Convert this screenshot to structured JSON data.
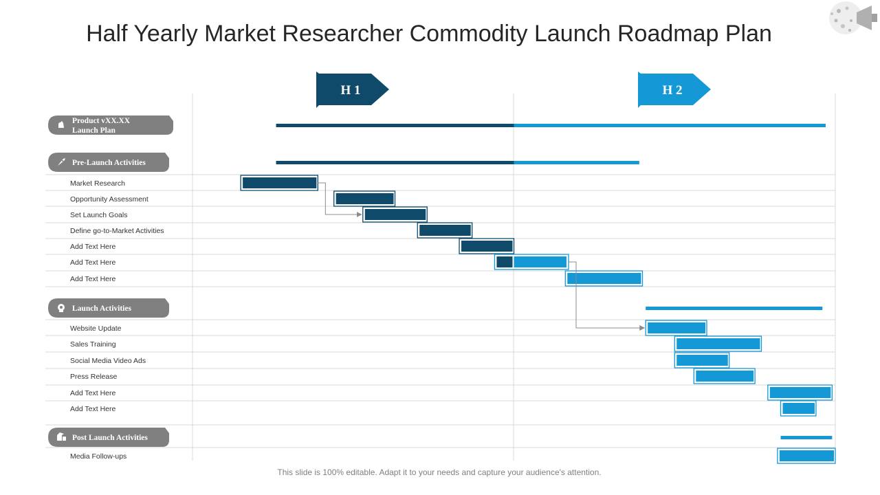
{
  "title": "Half Yearly Market Researcher Commodity Launch Roadmap Plan",
  "footer": "This slide is 100% editable. Adapt it to your needs and capture your audience's attention.",
  "colors": {
    "h1": "#0f4a6a",
    "h2": "#1498d6",
    "section_pill": "#808080",
    "grid": "#d9d9d9"
  },
  "chart_data": {
    "type": "gantt",
    "phases": [
      {
        "label": "H 1",
        "color": "#0f4a6a"
      },
      {
        "label": "H 2",
        "color": "#1498d6"
      }
    ],
    "sections": [
      {
        "label": "Product vXX.XX Launch Plan",
        "icon": "hand-icon",
        "summary": [
          0.26,
          1.97
        ]
      },
      {
        "label": "Pre-Launch Activities",
        "icon": "rocket-icon",
        "summary": [
          0.26,
          1.39
        ]
      },
      {
        "label": "Launch Activities",
        "icon": "head-gear-icon",
        "summary": [
          1.41,
          1.96
        ]
      },
      {
        "label": "Post Launch Activities",
        "icon": "boxes-icon",
        "summary": [
          1.83,
          1.99
        ]
      }
    ],
    "tasks": [
      {
        "label": "Market Research",
        "section": 1,
        "start": 0.15,
        "end": 0.39
      },
      {
        "label": "Opportunity Assessment",
        "section": 1,
        "start": 0.44,
        "end": 0.63
      },
      {
        "label": "Set Launch Goals",
        "section": 1,
        "start": 0.53,
        "end": 0.73
      },
      {
        "label": "Define go-to-Market Activities",
        "section": 1,
        "start": 0.7,
        "end": 0.87
      },
      {
        "label": "Add Text Here",
        "section": 1,
        "start": 0.83,
        "end": 1.0
      },
      {
        "label": "Add Text Here",
        "section": 1,
        "start": 0.94,
        "end": 1.17
      },
      {
        "label": "Add Text Here",
        "section": 1,
        "start": 1.16,
        "end": 1.4
      },
      {
        "label": "Website Update",
        "section": 2,
        "start": 1.41,
        "end": 1.6
      },
      {
        "label": "Sales Training",
        "section": 2,
        "start": 1.5,
        "end": 1.77
      },
      {
        "label": "Social Media Video Ads",
        "section": 2,
        "start": 1.5,
        "end": 1.67
      },
      {
        "label": "Press Release",
        "section": 2,
        "start": 1.56,
        "end": 1.75
      },
      {
        "label": "Add Text Here",
        "section": 2,
        "start": 1.79,
        "end": 1.99
      },
      {
        "label": "Add Text Here",
        "section": 2,
        "start": 1.83,
        "end": 1.94
      },
      {
        "label": "Media Follow-ups",
        "section": 3,
        "start": 1.82,
        "end": 2.0
      }
    ],
    "dependencies": [
      [
        0,
        2
      ],
      [
        5,
        7
      ]
    ],
    "xlim": [
      0,
      2
    ],
    "grid": true
  }
}
